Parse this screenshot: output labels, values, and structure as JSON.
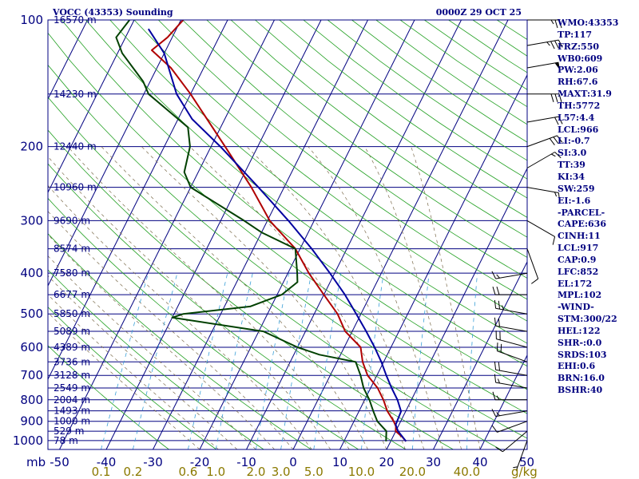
{
  "title": "VOCC (43353) Sounding",
  "datetime": "0000Z 29 OCT 25",
  "pressure_unit": "mb",
  "mixing_ratio_unit": "g/kg",
  "indices": [
    "WMO:43353",
    "TP:117",
    "FRZ:550",
    "WB0:609",
    "PW:2.06",
    "RH:67.6",
    "MAXT:31.9",
    "TH:5772",
    "L57:4.4",
    "LCL:966",
    "LI:-0.7",
    "SI:3.0",
    "TT:39",
    "KI:34",
    "SW:259",
    "EI:-1.6",
    "-PARCEL-",
    "CAPE:636",
    "CINH:11",
    "LCL:917",
    "CAP:0.9",
    "LFC:852",
    "EL:172",
    "MPL:102",
    "-WIND-",
    "STM:300/22",
    "HEL:122",
    "SHR-:0.0",
    "SRDS:103",
    "EHI:0.6",
    "BRN:16.0",
    "BSHR:40"
  ],
  "chart_data": {
    "type": "line",
    "diagram": "skew-T log-P",
    "pressure_ticks": [
      100,
      200,
      300,
      400,
      500,
      600,
      700,
      800,
      900,
      1000
    ],
    "temperature_ticks": [
      -50,
      -40,
      -30,
      -20,
      -10,
      0,
      10,
      20,
      30,
      40,
      50
    ],
    "mixing_ratio_labels": [
      "0.1",
      "0.2",
      "0.6",
      "1.0",
      "2.0",
      "3.0",
      "5.0",
      "10.0",
      "20.0",
      "40.0"
    ],
    "pressure_range_mb": [
      100,
      1000
    ],
    "height_levels": [
      {
        "p": 100,
        "label": "16570 m"
      },
      {
        "p": 150,
        "label": "14230 m"
      },
      {
        "p": 200,
        "label": "12440 m"
      },
      {
        "p": 250,
        "label": "10960 m"
      },
      {
        "p": 300,
        "label": "9690 m"
      },
      {
        "p": 350,
        "label": "8574 m"
      },
      {
        "p": 400,
        "label": "7580 m"
      },
      {
        "p": 450,
        "label": "6677 m"
      },
      {
        "p": 500,
        "label": "5850 m"
      },
      {
        "p": 550,
        "label": "5089 m"
      },
      {
        "p": 600,
        "label": "4389 m"
      },
      {
        "p": 650,
        "label": "3736 m"
      },
      {
        "p": 700,
        "label": "3128 m"
      },
      {
        "p": 750,
        "label": "2549 m"
      },
      {
        "p": 800,
        "label": "2004 m"
      },
      {
        "p": 850,
        "label": "1493 m"
      },
      {
        "p": 900,
        "label": "1000 m"
      },
      {
        "p": 950,
        "label": "529 m"
      },
      {
        "p": 1000,
        "label": "78 m"
      }
    ],
    "series": [
      {
        "color": "#b00000",
        "points": [
          [
            1004,
            23.3
          ],
          [
            980,
            22.0
          ],
          [
            950,
            20.0
          ],
          [
            925,
            19.5
          ],
          [
            900,
            18.5
          ],
          [
            850,
            16.0
          ],
          [
            800,
            14.0
          ],
          [
            750,
            11.5
          ],
          [
            700,
            8.0
          ],
          [
            650,
            5.5
          ],
          [
            600,
            3.5
          ],
          [
            550,
            -1.5
          ],
          [
            500,
            -5.0
          ],
          [
            450,
            -10.0
          ],
          [
            400,
            -15.5
          ],
          [
            350,
            -21.0
          ],
          [
            300,
            -29.5
          ],
          [
            250,
            -37.0
          ],
          [
            200,
            -47.0
          ],
          [
            150,
            -60.0
          ],
          [
            130,
            -67.0
          ],
          [
            118,
            -73.0
          ],
          [
            110,
            -71.0
          ],
          [
            100,
            -69.5
          ]
        ]
      },
      {
        "color": "#004000",
        "points": [
          [
            1004,
            19.0
          ],
          [
            950,
            18.0
          ],
          [
            900,
            15.0
          ],
          [
            850,
            13.0
          ],
          [
            800,
            11.0
          ],
          [
            750,
            8.5
          ],
          [
            700,
            6.5
          ],
          [
            650,
            4.0
          ],
          [
            625,
            -4.5
          ],
          [
            600,
            -10.0
          ],
          [
            550,
            -19.0
          ],
          [
            510,
            -40.0
          ],
          [
            500,
            -38.0
          ],
          [
            480,
            -24.5
          ],
          [
            450,
            -19.0
          ],
          [
            420,
            -17.0
          ],
          [
            400,
            -18.0
          ],
          [
            350,
            -21.0
          ],
          [
            320,
            -30.0
          ],
          [
            300,
            -35.0
          ],
          [
            250,
            -50.0
          ],
          [
            230,
            -53.0
          ],
          [
            200,
            -54.5
          ],
          [
            180,
            -57.0
          ],
          [
            150,
            -69.0
          ],
          [
            140,
            -71.5
          ],
          [
            120,
            -79.0
          ],
          [
            110,
            -82.0
          ],
          [
            100,
            -81.0
          ]
        ]
      },
      {
        "color": "#0000a0",
        "points": [
          [
            1004,
            23.3
          ],
          [
            950,
            20.5
          ],
          [
            917,
            19.3
          ],
          [
            852,
            19.0
          ],
          [
            800,
            17.0
          ],
          [
            750,
            14.5
          ],
          [
            700,
            12.0
          ],
          [
            650,
            9.5
          ],
          [
            600,
            6.5
          ],
          [
            550,
            3.0
          ],
          [
            500,
            -1.0
          ],
          [
            450,
            -5.5
          ],
          [
            400,
            -11.0
          ],
          [
            350,
            -17.5
          ],
          [
            300,
            -25.5
          ],
          [
            250,
            -35.5
          ],
          [
            200,
            -48.0
          ],
          [
            172,
            -57.0
          ],
          [
            150,
            -63.0
          ],
          [
            120,
            -70.0
          ],
          [
            105,
            -76.0
          ]
        ]
      }
    ],
    "wind_barbs": [
      {
        "p": 100,
        "dir": 90,
        "spd": 25
      },
      {
        "p": 115,
        "dir": 80,
        "spd": 35
      },
      {
        "p": 130,
        "dir": 80,
        "spd": 50
      },
      {
        "p": 150,
        "dir": 90,
        "spd": 30
      },
      {
        "p": 175,
        "dir": 80,
        "spd": 20
      },
      {
        "p": 200,
        "dir": 70,
        "spd": 30
      },
      {
        "p": 225,
        "dir": 60,
        "spd": 15
      },
      {
        "p": 250,
        "dir": 100,
        "spd": 15
      },
      {
        "p": 300,
        "dir": 120,
        "spd": 10
      },
      {
        "p": 350,
        "dir": 160,
        "spd": 10
      },
      {
        "p": 400,
        "dir": 260,
        "spd": 15
      },
      {
        "p": 450,
        "dir": 270,
        "spd": 20
      },
      {
        "p": 500,
        "dir": 280,
        "spd": 25
      },
      {
        "p": 550,
        "dir": 280,
        "spd": 20
      },
      {
        "p": 600,
        "dir": 285,
        "spd": 20
      },
      {
        "p": 650,
        "dir": 290,
        "spd": 20
      },
      {
        "p": 700,
        "dir": 280,
        "spd": 20
      },
      {
        "p": 750,
        "dir": 280,
        "spd": 15
      },
      {
        "p": 800,
        "dir": 270,
        "spd": 15
      },
      {
        "p": 850,
        "dir": 260,
        "spd": 15
      },
      {
        "p": 900,
        "dir": 250,
        "spd": 10
      },
      {
        "p": 950,
        "dir": 230,
        "spd": 10
      },
      {
        "p": 1000,
        "dir": 200,
        "spd": 5
      }
    ],
    "grid": true
  }
}
